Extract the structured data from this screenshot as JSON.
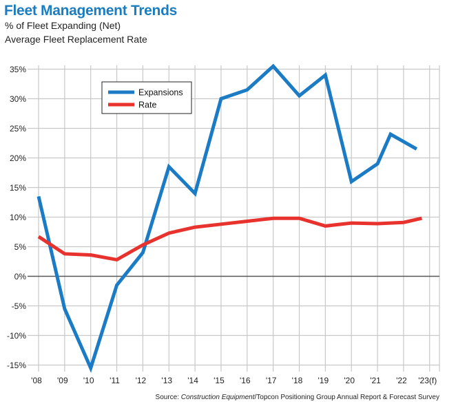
{
  "title": "Fleet Management Trends",
  "subtitle_lines": [
    "% of Fleet Expanding (Net)",
    "Average Fleet Replacement Rate"
  ],
  "source": {
    "prefix": "Source: ",
    "italic": "Construction Equipment",
    "suffix": "/Topcon Positioning Group Annual Report & Forecast Survey"
  },
  "chart_data": {
    "type": "line",
    "categories": [
      "'08",
      "'09",
      "'10",
      "'11",
      "'12",
      "'13",
      "'14",
      "'15",
      "'16",
      "'17",
      "'18",
      "'19",
      "'20",
      "'21",
      "'22",
      "'23(f)"
    ],
    "y_ticks": [
      -15,
      -10,
      -5,
      0,
      5,
      10,
      15,
      20,
      25,
      30,
      35
    ],
    "y_tick_labels": [
      "-15%",
      "-10%",
      "-5%",
      "0%",
      "5%",
      "10%",
      "15%",
      "20%",
      "25%",
      "30%",
      "35%"
    ],
    "ylim": [
      -15,
      36
    ],
    "grid": true,
    "legend_position": "top-left",
    "series": [
      {
        "name": "Expansions",
        "color": "#1b7bc4",
        "x": [
          0.0,
          1.0,
          2.0,
          3.0,
          4.0,
          5.0,
          6.0,
          7.0,
          8.0,
          9.0,
          10.0,
          11.0,
          12.0,
          13.0,
          13.5,
          14.5
        ],
        "values": [
          13.5,
          -5.5,
          -15.5,
          -1.5,
          4.0,
          18.5,
          14.0,
          30.0,
          31.5,
          35.5,
          30.5,
          34.0,
          16.0,
          19.0,
          24.0,
          21.5
        ]
      },
      {
        "name": "Rate",
        "color": "#e8322d",
        "x": [
          0.0,
          1.0,
          2.0,
          3.0,
          4.0,
          5.0,
          6.0,
          7.0,
          8.0,
          9.0,
          10.0,
          11.0,
          12.0,
          13.0,
          14.0,
          14.7
        ],
        "values": [
          6.7,
          3.8,
          3.6,
          2.8,
          5.3,
          7.3,
          8.3,
          8.8,
          9.3,
          9.8,
          9.8,
          8.5,
          9.0,
          8.9,
          9.1,
          9.8
        ]
      }
    ]
  }
}
